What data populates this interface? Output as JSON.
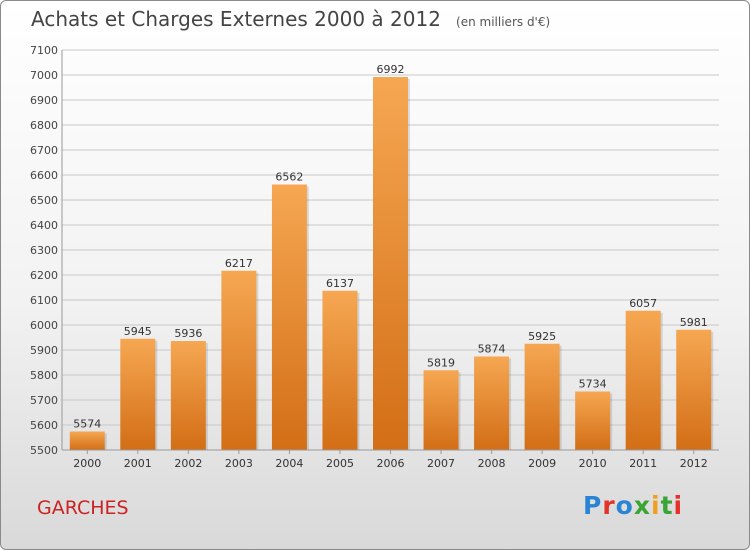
{
  "header": {
    "title": "Achats et Charges Externes 2000 à 2012",
    "unit": "(en milliers d'€)"
  },
  "footer": {
    "city": "GARCHES",
    "logo": "Proxiti"
  },
  "colors": {
    "bar_light": "#f6a752",
    "bar_dark": "#d26e16",
    "grid": "#c8c8c8",
    "city_text": "#cc2222",
    "logo_letters": [
      "#2a84d4",
      "#e4322b",
      "#2a84d4",
      "#3aa535",
      "#f0a020",
      "#3aa535",
      "#e4322b"
    ]
  },
  "chart_data": {
    "type": "bar",
    "title": "Achats et Charges Externes 2000 à 2012",
    "subtitle": "(en milliers d'€)",
    "categories": [
      "2000",
      "2001",
      "2002",
      "2003",
      "2004",
      "2005",
      "2006",
      "2007",
      "2008",
      "2009",
      "2010",
      "2011",
      "2012"
    ],
    "values": [
      5574,
      5945,
      5936,
      6217,
      6562,
      6137,
      6992,
      5819,
      5874,
      5925,
      5734,
      6057,
      5981
    ],
    "ylim": [
      5500,
      7100
    ],
    "yticks": [
      5500,
      5600,
      5700,
      5800,
      5900,
      6000,
      6100,
      6200,
      6300,
      6400,
      6500,
      6600,
      6700,
      6800,
      6900,
      7000,
      7100
    ],
    "grid": true,
    "xlabel": "",
    "ylabel": ""
  }
}
